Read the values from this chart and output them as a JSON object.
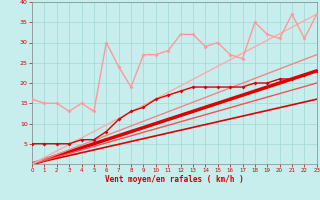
{
  "xlabel": "Vent moyen/en rafales ( km/h )",
  "xlim": [
    0,
    23
  ],
  "ylim": [
    0,
    40
  ],
  "yticks": [
    5,
    10,
    15,
    20,
    25,
    30,
    35,
    40
  ],
  "xticks": [
    0,
    1,
    2,
    3,
    4,
    5,
    6,
    7,
    8,
    9,
    10,
    11,
    12,
    13,
    14,
    15,
    16,
    17,
    18,
    19,
    20,
    21,
    22,
    23
  ],
  "bg_color": "#c8eded",
  "grid_color": "#a0d8d8",
  "dark_red": "#dd0000",
  "light_pink": "#ff9999",
  "med_pink": "#ee6666",
  "reg_lines": [
    {
      "x0": 0,
      "y0": 0,
      "x1": 23,
      "y1": 23,
      "color": "#dd0000",
      "lw": 2.5
    },
    {
      "x0": 0,
      "y0": 0,
      "x1": 23,
      "y1": 16,
      "color": "#dd0000",
      "lw": 1.2
    },
    {
      "x0": 0,
      "y0": 0,
      "x1": 23,
      "y1": 20,
      "color": "#ee5555",
      "lw": 1.0
    },
    {
      "x0": 0,
      "y0": 0,
      "x1": 23,
      "y1": 27,
      "color": "#ee8888",
      "lw": 1.0
    },
    {
      "x0": 0,
      "y0": 0,
      "x1": 23,
      "y1": 37,
      "color": "#ffaaaa",
      "lw": 1.0
    }
  ],
  "line_dark_x": [
    0,
    1,
    2,
    3,
    4,
    5,
    6,
    7,
    8,
    9,
    10,
    11,
    12,
    13,
    14,
    15,
    16,
    17,
    18,
    19,
    20,
    21,
    22,
    23
  ],
  "line_dark_y": [
    5,
    5,
    5,
    5,
    6,
    6,
    8,
    11,
    13,
    14,
    16,
    17,
    18,
    19,
    19,
    19,
    19,
    19,
    20,
    20,
    21,
    21,
    22,
    23
  ],
  "line_light_x": [
    0,
    1,
    2,
    3,
    4,
    5,
    6,
    7,
    8,
    9,
    10,
    11,
    12,
    13,
    14,
    15,
    16,
    17,
    18,
    19,
    20,
    21,
    22,
    23
  ],
  "line_light_y": [
    16,
    15,
    15,
    13,
    15,
    13,
    30,
    24,
    19,
    27,
    27,
    28,
    32,
    32,
    29,
    30,
    27,
    26,
    35,
    32,
    31,
    37,
    31,
    37
  ]
}
